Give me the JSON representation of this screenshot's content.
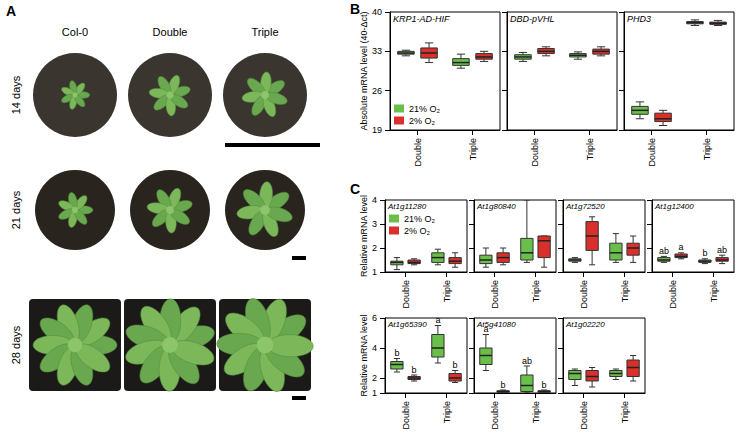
{
  "panel_labels": [
    "A",
    "B",
    "C"
  ],
  "panel_a": {
    "columns": [
      "Col-0",
      "Double",
      "Triple"
    ],
    "rows": [
      "14 days",
      "21 days",
      "28 days"
    ]
  },
  "chart_data": [
    {
      "type": "boxplot",
      "title": "KRP1-AD-HIF",
      "ylabel": "Absolute mRNA level (40-Δct)",
      "categories": [
        "Double",
        "Triple"
      ],
      "series": [
        {
          "name": "21% O₂",
          "color": "#6abf4b",
          "values": [
            [
              32.2,
              32.5,
              32.7,
              33.0,
              33.2
            ],
            [
              30.0,
              30.5,
              31.0,
              31.7,
              32.5
            ]
          ]
        },
        {
          "name": "2% O₂",
          "color": "#d9302c",
          "values": [
            [
              31.0,
              31.8,
              32.7,
              33.6,
              34.5
            ],
            [
              31.2,
              31.6,
              32.0,
              32.6,
              33.0
            ]
          ]
        }
      ],
      "ylim": [
        19,
        40
      ],
      "yticks": [
        19,
        26,
        33,
        40
      ],
      "grid": false,
      "legend": "lower left"
    },
    {
      "type": "boxplot",
      "title": "DBD-pVHL",
      "categories": [
        "Double",
        "Triple"
      ],
      "series": [
        {
          "name": "21% O₂",
          "color": "#6abf4b",
          "values": [
            [
              31.2,
              31.6,
              32.0,
              32.4,
              32.8
            ],
            [
              31.6,
              32.0,
              32.3,
              32.6,
              32.9
            ]
          ]
        },
        {
          "name": "2% O₂",
          "color": "#d9302c",
          "values": [
            [
              32.2,
              32.6,
              33.0,
              33.5,
              33.8
            ],
            [
              32.2,
              32.5,
              33.0,
              33.4,
              33.8
            ]
          ]
        }
      ],
      "ylim": [
        19,
        40
      ],
      "yticks": [
        19,
        26,
        33,
        40
      ],
      "grid": false,
      "tick_labels": "x"
    },
    {
      "type": "boxplot",
      "title": "PHD3",
      "categories": [
        "Double",
        "Triple"
      ],
      "series": [
        {
          "name": "21% O₂",
          "color": "#6abf4b",
          "values": [
            [
              21.0,
              21.8,
              22.5,
              23.2,
              24.0
            ],
            [
              37.6,
              37.9,
              38.1,
              38.3,
              38.6
            ]
          ]
        },
        {
          "name": "2% O₂",
          "color": "#d9302c",
          "values": [
            [
              19.8,
              20.5,
              21.0,
              22.0,
              22.5
            ],
            [
              37.6,
              37.8,
              38.0,
              38.2,
              38.5
            ]
          ]
        }
      ],
      "ylim": [
        19,
        40
      ],
      "yticks": [
        19,
        26,
        33,
        40
      ],
      "grid": false,
      "tick_labels": "x"
    },
    {
      "type": "boxplot",
      "title": "At1g11280",
      "ylabel": "Relative mRNA level",
      "categories": [
        "Double",
        "Triple"
      ],
      "series": [
        {
          "name": "21% O₂",
          "color": "#6abf4b",
          "values": [
            [
              1.1,
              1.3,
              1.4,
              1.45,
              1.6
            ],
            [
              1.3,
              1.4,
              1.6,
              1.8,
              1.95
            ]
          ]
        },
        {
          "name": "2% O₂",
          "color": "#d9302c",
          "values": [
            [
              1.3,
              1.35,
              1.4,
              1.5,
              1.55
            ],
            [
              1.2,
              1.35,
              1.45,
              1.6,
              1.8
            ]
          ]
        }
      ],
      "ylim": [
        1,
        4
      ],
      "yticks": [
        1,
        2,
        3,
        4
      ],
      "grid": false,
      "legend": "upper left"
    },
    {
      "type": "boxplot",
      "title": "At1g80840",
      "categories": [
        "Double",
        "Triple"
      ],
      "series": [
        {
          "name": "21% O₂",
          "color": "#6abf4b",
          "values": [
            [
              1.2,
              1.35,
              1.5,
              1.7,
              2.0
            ],
            [
              1.4,
              1.5,
              1.8,
              2.4,
              4.0
            ]
          ]
        },
        {
          "name": "2% O₂",
          "color": "#d9302c",
          "values": [
            [
              1.3,
              1.4,
              1.6,
              1.8,
              2.0
            ],
            [
              1.2,
              1.6,
              2.3,
              2.5,
              2.5
            ]
          ]
        }
      ],
      "ylim": [
        1,
        4
      ],
      "yticks": [
        1,
        2,
        3,
        4
      ],
      "grid": false,
      "tick_labels": "x"
    },
    {
      "type": "boxplot",
      "title": "At1g72520",
      "categories": [
        "Double",
        "Triple"
      ],
      "series": [
        {
          "name": "21% O₂",
          "color": "#6abf4b",
          "values": [
            [
              1.4,
              1.45,
              1.5,
              1.55,
              1.6
            ],
            [
              1.4,
              1.5,
              1.8,
              2.2,
              2.6
            ]
          ]
        },
        {
          "name": "2% O₂",
          "color": "#d9302c",
          "values": [
            [
              1.3,
              1.9,
              2.5,
              3.1,
              3.3
            ],
            [
              1.4,
              1.7,
              2.0,
              2.2,
              2.5
            ]
          ]
        }
      ],
      "ylim": [
        1,
        4
      ],
      "yticks": [
        1,
        2,
        3,
        4
      ],
      "grid": false,
      "tick_labels": "x"
    },
    {
      "type": "boxplot",
      "title": "At1g12400",
      "categories": [
        "Double",
        "Triple"
      ],
      "series": [
        {
          "name": "21% O₂",
          "color": "#6abf4b",
          "values": [
            [
              1.4,
              1.45,
              1.5,
              1.6,
              1.65
            ],
            [
              1.35,
              1.4,
              1.45,
              1.5,
              1.55
            ]
          ],
          "annotations": [
            "ab",
            "b"
          ]
        },
        {
          "name": "2% O₂",
          "color": "#d9302c",
          "values": [
            [
              1.55,
              1.6,
              1.65,
              1.75,
              1.8
            ],
            [
              1.35,
              1.45,
              1.5,
              1.6,
              1.7
            ]
          ],
          "annotations": [
            "a",
            "ab"
          ]
        }
      ],
      "ylim": [
        1,
        4
      ],
      "yticks": [
        1,
        2,
        3,
        4
      ],
      "grid": false,
      "tick_labels": "x"
    },
    {
      "type": "boxplot",
      "title": "At1g65390",
      "ylabel": "Relative mRNA level",
      "categories": [
        "Double",
        "Triple"
      ],
      "series": [
        {
          "name": "21% O₂",
          "color": "#6abf4b",
          "values": [
            [
              2.4,
              2.6,
              2.9,
              3.1,
              3.3
            ],
            [
              3.0,
              3.4,
              4.0,
              4.9,
              5.5
            ]
          ],
          "annotations": [
            "b",
            "a"
          ]
        },
        {
          "name": "2% O₂",
          "color": "#d9302c",
          "values": [
            [
              1.8,
              1.9,
              2.0,
              2.1,
              2.2
            ],
            [
              1.7,
              1.8,
              2.0,
              2.3,
              2.5
            ]
          ],
          "annotations": [
            "b",
            "b"
          ]
        }
      ],
      "ylim": [
        1,
        6
      ],
      "yticks": [
        1,
        2,
        4,
        6
      ],
      "grid": false
    },
    {
      "type": "boxplot",
      "title": "At5g41080",
      "categories": [
        "Double",
        "Triple"
      ],
      "series": [
        {
          "name": "21% O₂",
          "color": "#6abf4b",
          "values": [
            [
              2.5,
              2.9,
              3.5,
              4.0,
              4.9
            ],
            [
              1.0,
              1.1,
              1.5,
              2.2,
              2.8
            ]
          ],
          "annotations": [
            "a",
            "ab"
          ]
        },
        {
          "name": "2% O₂",
          "color": "#d9302c",
          "values": [
            [
              1.0,
              1.05,
              1.1,
              1.15,
              1.2
            ],
            [
              1.0,
              1.05,
              1.1,
              1.15,
              1.2
            ]
          ],
          "annotations": [
            "b",
            "b"
          ]
        }
      ],
      "ylim": [
        1,
        6
      ],
      "yticks": [
        1,
        2,
        4,
        6
      ],
      "grid": false,
      "tick_labels": "x"
    },
    {
      "type": "boxplot",
      "title": "At1g02220",
      "categories": [
        "Double",
        "Triple"
      ],
      "series": [
        {
          "name": "21% O₂",
          "color": "#6abf4b",
          "values": [
            [
              1.5,
              1.9,
              2.3,
              2.5,
              2.6
            ],
            [
              1.9,
              2.1,
              2.3,
              2.5,
              2.6
            ]
          ]
        },
        {
          "name": "2% O₂",
          "color": "#d9302c",
          "values": [
            [
              1.4,
              1.8,
              2.1,
              2.5,
              2.7
            ],
            [
              1.8,
              2.1,
              2.7,
              3.2,
              3.5
            ]
          ]
        }
      ],
      "ylim": [
        1,
        6
      ],
      "yticks": [
        1,
        2,
        4,
        6
      ],
      "grid": false,
      "tick_labels": "x"
    }
  ]
}
